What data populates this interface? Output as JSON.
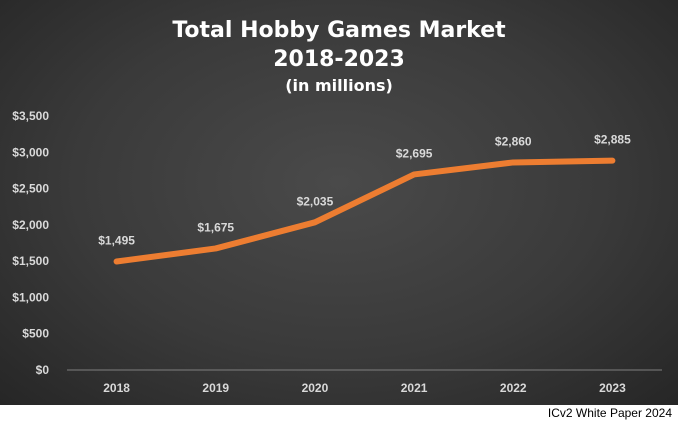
{
  "chart_data": {
    "type": "line",
    "title_lines": [
      "Total Hobby Games Market",
      "2018-2023",
      "(in millions)"
    ],
    "categories": [
      "2018",
      "2019",
      "2020",
      "2021",
      "2022",
      "2023"
    ],
    "values": [
      1495,
      1675,
      2035,
      2695,
      2860,
      2885
    ],
    "data_labels": [
      "$1,495",
      "$1,675",
      "$2,035",
      "$2,695",
      "$2,860",
      "$2,885"
    ],
    "y_ticks": [
      0,
      500,
      1000,
      1500,
      2000,
      2500,
      3000,
      3500
    ],
    "y_tick_labels": [
      "$0",
      "$500",
      "$1,000",
      "$1,500",
      "$2,000",
      "$2,500",
      "$3,000",
      "$3,500"
    ],
    "ylim": [
      0,
      3500
    ],
    "grid": false,
    "xlabel": "",
    "ylabel": "",
    "line_color": "#ed7d31",
    "background_color": "#3a3a3a"
  },
  "source_note": "ICv2 White Paper 2024"
}
